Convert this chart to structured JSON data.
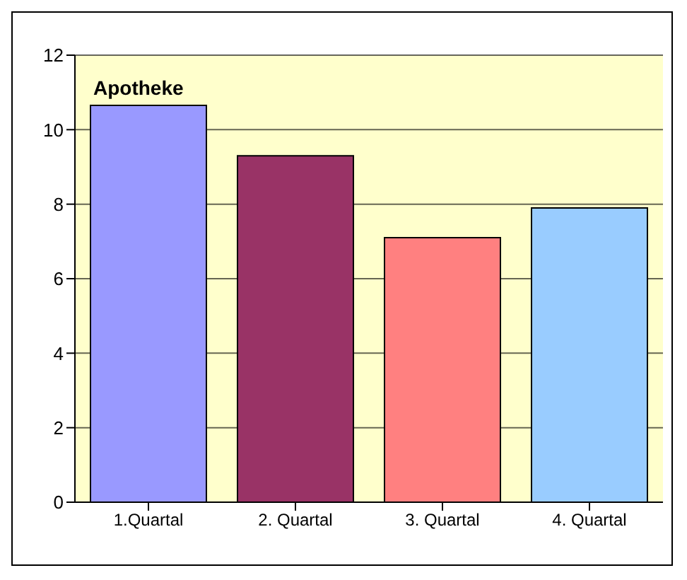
{
  "chart_data": {
    "type": "bar",
    "title": "Apotheke",
    "categories": [
      "1.Quartal",
      "2. Quartal",
      "3. Quartal",
      "4. Quartal"
    ],
    "values": [
      10.65,
      9.3,
      7.1,
      7.9
    ],
    "colors": [
      "#9999ff",
      "#993366",
      "#ff8080",
      "#99ccff"
    ],
    "ylim": [
      0,
      12
    ],
    "yticks": [
      0,
      2,
      4,
      6,
      8,
      10,
      12
    ],
    "grid": "y"
  }
}
